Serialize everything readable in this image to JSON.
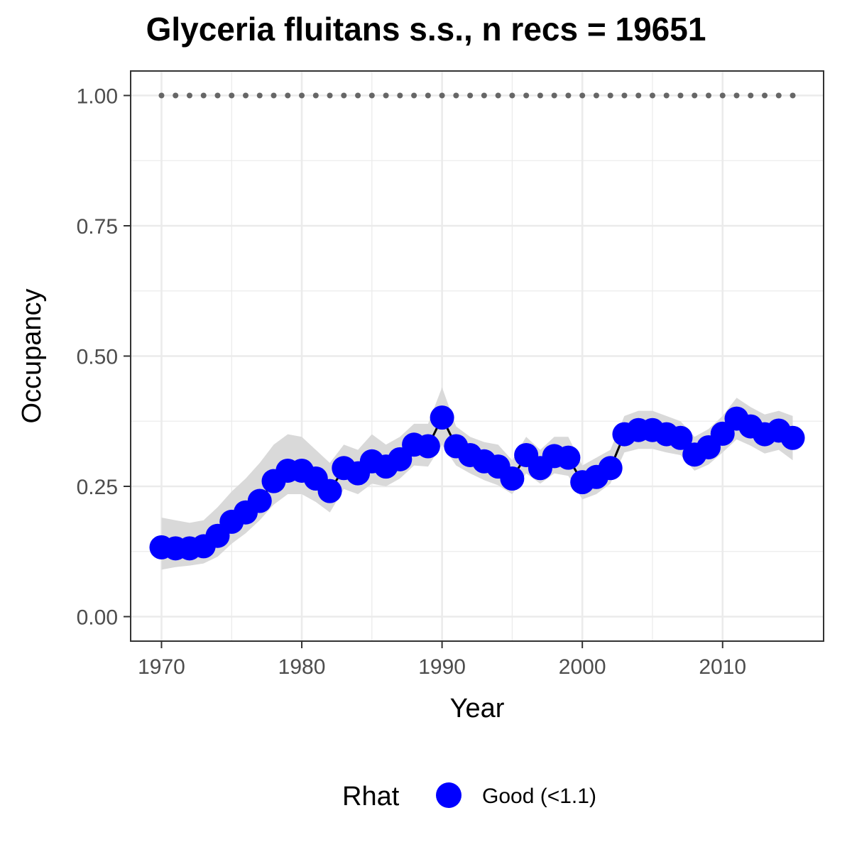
{
  "chart_data": {
    "type": "line",
    "title": "Glyceria fluitans s.s., n recs = 19651",
    "xlabel": "Year",
    "ylabel": "Occupancy",
    "xlim": [
      1967.8,
      2017.2
    ],
    "ylim": [
      -0.047,
      1.047
    ],
    "x_ticks": [
      1970,
      1980,
      1990,
      2000,
      2010
    ],
    "y_ticks": [
      0.0,
      0.25,
      0.5,
      0.75,
      1.0
    ],
    "y_tick_labels": [
      "0.00",
      "0.25",
      "0.50",
      "0.75",
      "1.00"
    ],
    "grid": true,
    "legend": {
      "title": "Rhat",
      "position": "bottom",
      "entries": [
        {
          "label": "Good (<1.1)",
          "color": "#0000ff"
        }
      ]
    },
    "colors": {
      "points": "#0000ff",
      "line": "#000000",
      "ribbon": "#d9d9d9",
      "reference_dots": "#666666",
      "grid": "#ebebeb",
      "panel_border": "#333333"
    },
    "reference_line": {
      "y": 1.0,
      "style": "dotted"
    },
    "series": [
      {
        "x": [
          1970,
          1971,
          1972,
          1973,
          1974,
          1975,
          1976,
          1977,
          1978,
          1979,
          1980,
          1981,
          1982,
          1983,
          1984,
          1985,
          1986,
          1987,
          1988,
          1989,
          1990,
          1991,
          1992,
          1993,
          1994,
          1995,
          1996,
          1997,
          1998,
          1999,
          2000,
          2001,
          2002,
          2003,
          2004,
          2005,
          2006,
          2007,
          2008,
          2009,
          2010,
          2011,
          2012,
          2013,
          2014,
          2015
        ],
        "y": [
          0.133,
          0.131,
          0.131,
          0.135,
          0.155,
          0.182,
          0.2,
          0.222,
          0.26,
          0.28,
          0.28,
          0.265,
          0.241,
          0.285,
          0.275,
          0.298,
          0.288,
          0.302,
          0.33,
          0.327,
          0.382,
          0.327,
          0.31,
          0.298,
          0.288,
          0.265,
          0.31,
          0.285,
          0.308,
          0.305,
          0.258,
          0.268,
          0.285,
          0.35,
          0.358,
          0.358,
          0.35,
          0.343,
          0.311,
          0.325,
          0.351,
          0.38,
          0.365,
          0.35,
          0.357,
          0.343
        ],
        "lower": [
          0.09,
          0.095,
          0.098,
          0.102,
          0.115,
          0.14,
          0.16,
          0.185,
          0.215,
          0.235,
          0.235,
          0.22,
          0.2,
          0.245,
          0.235,
          0.255,
          0.25,
          0.265,
          0.29,
          0.288,
          0.33,
          0.29,
          0.275,
          0.262,
          0.252,
          0.235,
          0.275,
          0.255,
          0.275,
          0.27,
          0.225,
          0.235,
          0.255,
          0.315,
          0.322,
          0.322,
          0.315,
          0.31,
          0.28,
          0.292,
          0.315,
          0.34,
          0.328,
          0.313,
          0.32,
          0.3
        ],
        "upper": [
          0.19,
          0.185,
          0.18,
          0.185,
          0.21,
          0.24,
          0.265,
          0.295,
          0.33,
          0.35,
          0.345,
          0.32,
          0.295,
          0.33,
          0.32,
          0.35,
          0.33,
          0.345,
          0.37,
          0.37,
          0.44,
          0.365,
          0.345,
          0.335,
          0.33,
          0.3,
          0.345,
          0.32,
          0.345,
          0.345,
          0.29,
          0.305,
          0.32,
          0.385,
          0.395,
          0.395,
          0.385,
          0.375,
          0.345,
          0.36,
          0.385,
          0.42,
          0.402,
          0.388,
          0.395,
          0.385
        ]
      }
    ]
  }
}
